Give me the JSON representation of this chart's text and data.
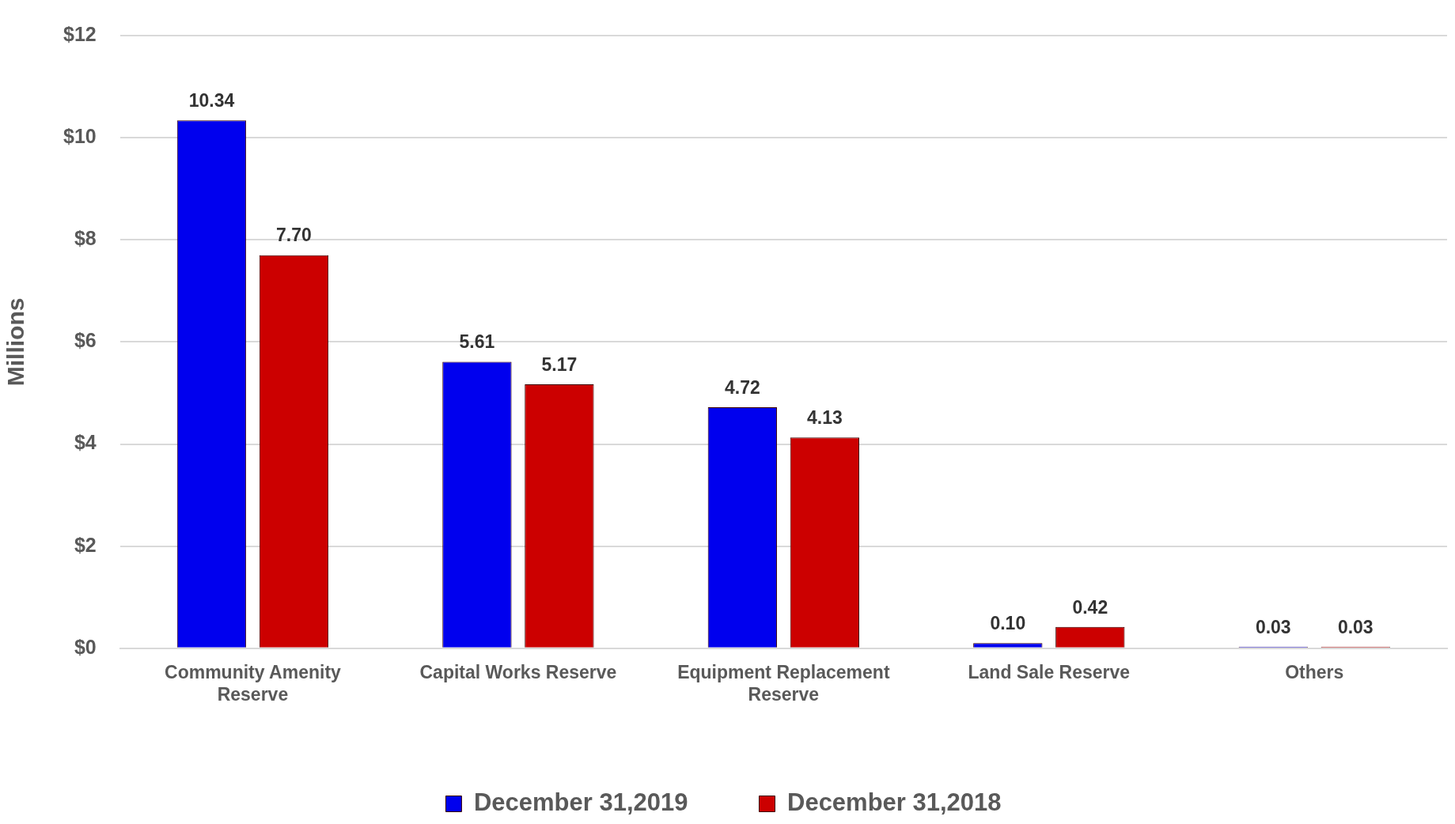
{
  "chart_data": {
    "type": "bar",
    "ylabel": "Millions",
    "categories": [
      "Community Amenity Reserve",
      "Capital Works Reserve",
      "Equipment Replacement Reserve",
      "Land Sale Reserve",
      "Others"
    ],
    "series": [
      {
        "name": "December 31,2019",
        "color": "#0000ee",
        "values": [
          10.34,
          5.61,
          4.72,
          0.1,
          0.03
        ],
        "value_labels": [
          "10.34",
          "5.61",
          "4.72",
          "0.10",
          "0.03"
        ]
      },
      {
        "name": "December 31,2018",
        "color": "#cc0000",
        "values": [
          7.7,
          5.17,
          4.13,
          0.42,
          0.03
        ],
        "value_labels": [
          "7.70",
          "5.17",
          "4.13",
          "0.42",
          "0.03"
        ]
      }
    ],
    "ylim": [
      0,
      12
    ],
    "yticks": [
      {
        "value": 0,
        "label": "$0"
      },
      {
        "value": 2,
        "label": "$2"
      },
      {
        "value": 4,
        "label": "$4"
      },
      {
        "value": 6,
        "label": "$6"
      },
      {
        "value": 8,
        "label": "$8"
      },
      {
        "value": 10,
        "label": "$10"
      },
      {
        "value": 12,
        "label": "$12"
      }
    ],
    "grid": "y",
    "legend": "bottom"
  }
}
